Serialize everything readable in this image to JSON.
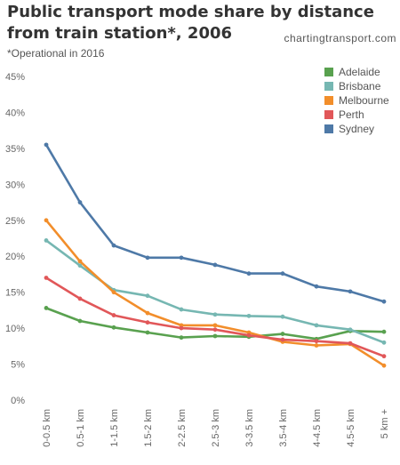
{
  "header": {
    "title": "Public transport mode share by distance from train station*, 2006",
    "source": "chartingtransport.com",
    "note": "*Operational in 2016"
  },
  "chart_data": {
    "type": "line",
    "title": "Public transport mode share by distance from train station*, 2006",
    "subtitle": "*Operational in 2016",
    "xlabel": "",
    "ylabel": "",
    "categories": [
      "0-0.5 km",
      "0.5-1 km",
      "1-1.5 km",
      "1.5-2 km",
      "2-2.5 km",
      "2.5-3 km",
      "3-3.5 km",
      "3.5-4 km",
      "4-4.5 km",
      "4.5-5 km",
      "5 km +"
    ],
    "ylim": [
      0,
      45
    ],
    "yticks": [
      "0%",
      "5%",
      "10%",
      "15%",
      "20%",
      "25%",
      "30%",
      "35%",
      "40%",
      "45%"
    ],
    "grid": false,
    "legend_position": "top-right",
    "series": [
      {
        "name": "Adelaide",
        "color": "#59a14f",
        "values": [
          12.8,
          11.0,
          10.1,
          9.4,
          8.7,
          8.9,
          8.8,
          9.2,
          8.5,
          9.6,
          9.5
        ]
      },
      {
        "name": "Brisbane",
        "color": "#76b7b2",
        "values": [
          22.2,
          18.7,
          15.3,
          14.5,
          12.6,
          11.9,
          11.7,
          11.6,
          10.4,
          9.8,
          8.0
        ]
      },
      {
        "name": "Melbourne",
        "color": "#f28e2b",
        "values": [
          25.0,
          19.3,
          15.0,
          12.1,
          10.4,
          10.4,
          9.4,
          8.1,
          7.6,
          7.8,
          4.8
        ]
      },
      {
        "name": "Perth",
        "color": "#e15759",
        "values": [
          17.0,
          14.1,
          11.8,
          10.8,
          10.0,
          9.8,
          9.0,
          8.4,
          8.2,
          7.9,
          6.1
        ]
      },
      {
        "name": "Sydney",
        "color": "#4e79a7",
        "values": [
          35.5,
          27.5,
          21.5,
          19.8,
          19.8,
          18.8,
          17.6,
          17.6,
          15.8,
          15.1,
          13.7
        ]
      }
    ]
  }
}
